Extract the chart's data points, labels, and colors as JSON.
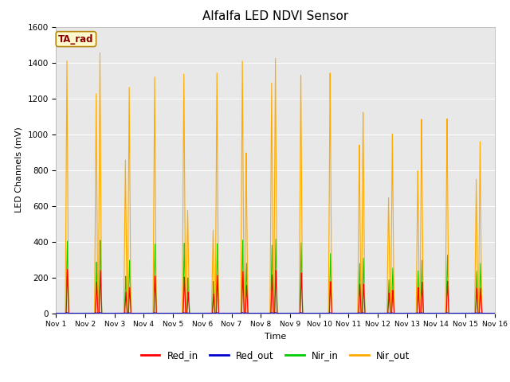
{
  "title": "Alfalfa LED NDVI Sensor",
  "xlabel": "Time",
  "ylabel": "LED Channels (mV)",
  "ylim": [
    0,
    1600
  ],
  "xlim_days": [
    1,
    16
  ],
  "legend_label": "TA_rad",
  "bg_color": "#e8e8e8",
  "fig_bg": "#ffffff",
  "colors": {
    "Red_in": "#ff0000",
    "Red_out": "#0000cc",
    "Nir_in": "#00cc00",
    "Nir_out": "#ffaa00"
  },
  "tick_labels": [
    "Nov 1",
    "Nov 2",
    "Nov 3",
    "Nov 4",
    "Nov 5",
    "Nov 6",
    "Nov 7",
    "Nov 8",
    "Nov 9",
    "Nov 10",
    "Nov 11",
    "Nov 12",
    "Nov 13",
    "Nov 14",
    "Nov 15",
    "Nov 16"
  ],
  "spike_pairs": [
    {
      "day": 1,
      "p1_nout": 1410,
      "p1_nin": 410,
      "p1_rin": 245,
      "p2_nout": 0,
      "p2_nin": 0,
      "p2_rin": 0
    },
    {
      "day": 2,
      "p1_nout": 1230,
      "p1_nin": 290,
      "p1_rin": 175,
      "p2_nout": 1460,
      "p2_nin": 415,
      "p2_rin": 240
    },
    {
      "day": 3,
      "p1_nout": 860,
      "p1_nin": 210,
      "p1_rin": 120,
      "p2_nout": 1270,
      "p2_nin": 300,
      "p2_rin": 145
    },
    {
      "day": 4,
      "p1_nout": 1330,
      "p1_nin": 390,
      "p1_rin": 210,
      "p2_nout": 0,
      "p2_nin": 0,
      "p2_rin": 0
    },
    {
      "day": 5,
      "p1_nout": 1350,
      "p1_nin": 395,
      "p1_rin": 205,
      "p2_nout": 580,
      "p2_nin": 200,
      "p2_rin": 120
    },
    {
      "day": 6,
      "p1_nout": 470,
      "p1_nin": 180,
      "p1_rin": 110,
      "p2_nout": 1360,
      "p2_nin": 390,
      "p2_rin": 215
    },
    {
      "day": 7,
      "p1_nout": 1430,
      "p1_nin": 410,
      "p1_rin": 238,
      "p2_nout": 910,
      "p2_nin": 280,
      "p2_rin": 160
    },
    {
      "day": 8,
      "p1_nout": 1310,
      "p1_nin": 380,
      "p1_rin": 220,
      "p2_nout": 1450,
      "p2_nin": 415,
      "p2_rin": 245
    },
    {
      "day": 9,
      "p1_nout": 1350,
      "p1_nin": 395,
      "p1_rin": 230,
      "p2_nout": 0,
      "p2_nin": 0,
      "p2_rin": 0
    },
    {
      "day": 10,
      "p1_nout": 1360,
      "p1_nin": 335,
      "p1_rin": 180,
      "p2_nout": 0,
      "p2_nin": 0,
      "p2_rin": 0
    },
    {
      "day": 11,
      "p1_nout": 950,
      "p1_nin": 280,
      "p1_rin": 165,
      "p2_nout": 1135,
      "p2_nin": 310,
      "p2_rin": 165
    },
    {
      "day": 12,
      "p1_nout": 650,
      "p1_nin": 190,
      "p1_rin": 115,
      "p2_nout": 1010,
      "p2_nin": 255,
      "p2_rin": 130
    },
    {
      "day": 13,
      "p1_nout": 800,
      "p1_nin": 240,
      "p1_rin": 145,
      "p2_nout": 1090,
      "p2_nin": 300,
      "p2_rin": 175
    },
    {
      "day": 14,
      "p1_nout": 1090,
      "p1_nin": 330,
      "p1_rin": 180,
      "p2_nout": 0,
      "p2_nin": 0,
      "p2_rin": 0
    },
    {
      "day": 15,
      "p1_nout": 750,
      "p1_nin": 240,
      "p1_rin": 140,
      "p2_nout": 960,
      "p2_nin": 285,
      "p2_rin": 140
    }
  ]
}
